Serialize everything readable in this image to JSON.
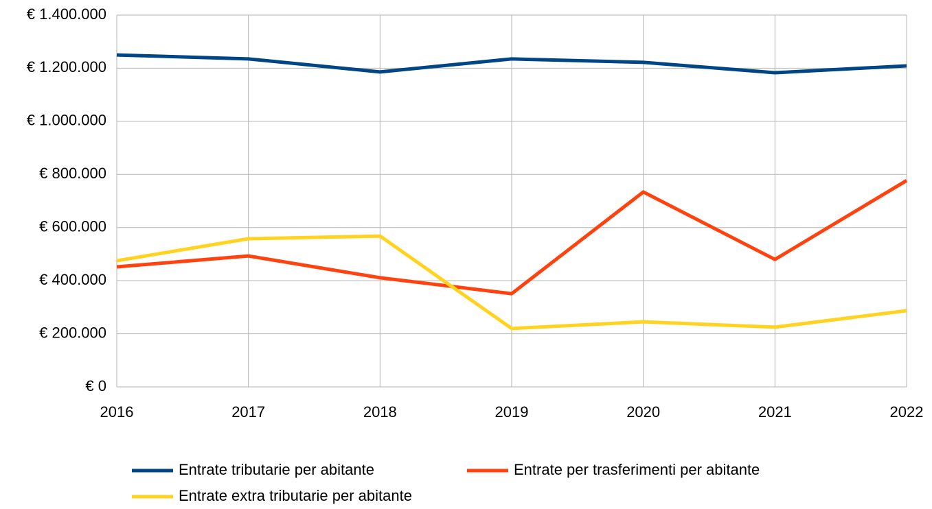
{
  "chart_data": {
    "type": "line",
    "categories": [
      "2016",
      "2017",
      "2018",
      "2019",
      "2020",
      "2021",
      "2022"
    ],
    "series": [
      {
        "name": "Entrate tributarie per abitante",
        "color": "#004586",
        "values": [
          1250000,
          1235000,
          1186000,
          1235000,
          1222000,
          1183000,
          1209000
        ]
      },
      {
        "name": "Entrate per trasferimenti per abitante",
        "color": "#ff420e",
        "values": [
          452000,
          493000,
          411000,
          351000,
          734000,
          480000,
          777000
        ]
      },
      {
        "name": "Entrate extra tributarie per abitante",
        "color": "#ffd320",
        "values": [
          475000,
          558000,
          568000,
          220000,
          245000,
          225000,
          287000
        ]
      }
    ],
    "ylim": [
      0,
      1400000
    ],
    "yticks": [
      {
        "value": 0,
        "label": "€ 0"
      },
      {
        "value": 200000,
        "label": "€ 200.000"
      },
      {
        "value": 400000,
        "label": "€ 400.000"
      },
      {
        "value": 600000,
        "label": "€ 600.000"
      },
      {
        "value": 800000,
        "label": "€ 800.000"
      },
      {
        "value": 1000000,
        "label": "€ 1.000.000"
      },
      {
        "value": 1200000,
        "label": "€ 1.200.000"
      },
      {
        "value": 1400000,
        "label": "€ 1.400.000"
      }
    ],
    "grid": true,
    "legend": "bottom"
  }
}
